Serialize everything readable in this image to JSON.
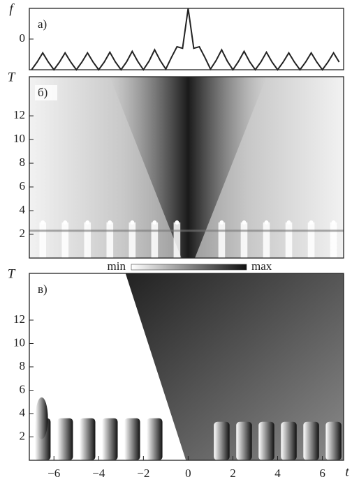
{
  "chart_data": [
    {
      "type": "line",
      "label": "a)",
      "y_label": "f",
      "x": [
        -7,
        -6.75,
        -6.5,
        -6.25,
        -6,
        -5.75,
        -5.5,
        -5.25,
        -5,
        -4.75,
        -4.5,
        -4.25,
        -4,
        -3.75,
        -3.5,
        -3.25,
        -3,
        -2.75,
        -2.5,
        -2.25,
        -2,
        -1.75,
        -1.5,
        -1.25,
        -1,
        -0.75,
        -0.5,
        -0.25,
        0,
        0.25,
        0.5,
        0.75,
        1,
        1.25,
        1.5,
        1.75,
        2,
        2.25,
        2.5,
        2.75,
        3,
        3.25,
        3.5,
        3.75,
        4,
        4.25,
        4.5,
        4.75,
        5,
        5.25,
        5.5,
        5.75,
        6,
        6.25,
        6.5,
        6.75
      ],
      "series": [
        {
          "color": "#222222",
          "values": [
            -1,
            -0.75,
            -0.45,
            -0.75,
            -1,
            -0.75,
            -0.45,
            -0.75,
            -1,
            -0.75,
            -0.45,
            -0.75,
            -1,
            -0.75,
            -0.43,
            -0.75,
            -1,
            -0.74,
            -0.4,
            -0.73,
            -1,
            -0.72,
            -0.35,
            -0.7,
            -0.98,
            -0.6,
            -0.25,
            -0.3,
            1,
            -0.3,
            -0.25,
            -0.6,
            -0.98,
            -0.7,
            -0.35,
            -0.72,
            -1,
            -0.73,
            -0.4,
            -0.74,
            -1,
            -0.75,
            -0.43,
            -0.75,
            -1,
            -0.75,
            -0.45,
            -0.75,
            -1,
            -0.75,
            -0.45,
            -0.75,
            -1,
            -0.75,
            -0.45,
            -0.75
          ]
        }
      ],
      "xlim": [
        -7.1,
        6.95
      ],
      "ylim": [
        -1,
        1
      ],
      "yticks": [
        0
      ]
    },
    {
      "type": "heatmap",
      "label": "б)",
      "y_label": "T",
      "xlim": [
        -7.1,
        6.95
      ],
      "ylim": [
        0,
        15.3
      ],
      "yticks": [
        2,
        4,
        6,
        8,
        10,
        12
      ],
      "colorbar": [
        "min",
        "max"
      ]
    },
    {
      "type": "heatmap-phase",
      "label": "в)",
      "y_label": "T",
      "x_label": "t",
      "xlim": [
        -7.1,
        6.95
      ],
      "ylim": [
        0,
        16
      ],
      "yticks": [
        2,
        4,
        6,
        8,
        10,
        12
      ],
      "xticks": [
        {
          "value": -6,
          "label": "−6"
        },
        {
          "value": -4,
          "label": "−4"
        },
        {
          "value": -2,
          "label": "−2"
        },
        0,
        2,
        4,
        6
      ]
    }
  ]
}
